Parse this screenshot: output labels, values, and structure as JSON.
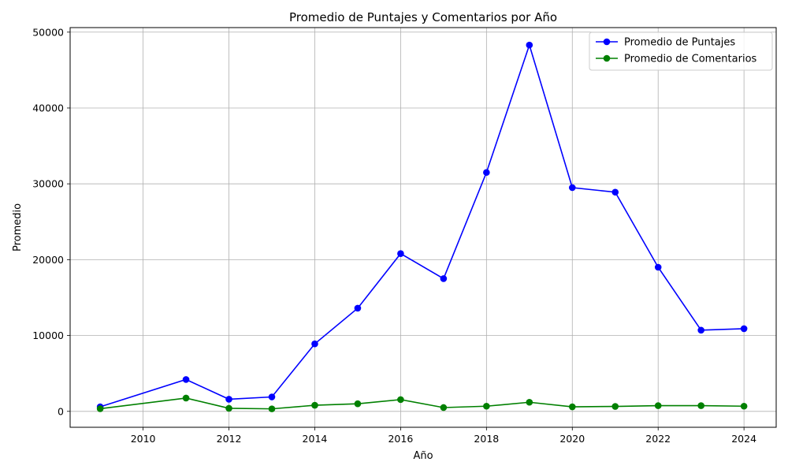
{
  "chart_data": {
    "type": "line",
    "title": "Promedio de Puntajes y Comentarios por Año",
    "xlabel": "Año",
    "ylabel": "Promedio",
    "xlim": [
      2008.3,
      2024.75
    ],
    "ylim": [
      -2100,
      50600
    ],
    "xticks": [
      2010,
      2012,
      2014,
      2016,
      2018,
      2020,
      2022,
      2024
    ],
    "yticks": [
      0,
      10000,
      20000,
      30000,
      40000,
      50000
    ],
    "grid": true,
    "legend_position": "top-right",
    "x": [
      2009,
      2011,
      2012,
      2013,
      2014,
      2015,
      2016,
      2017,
      2018,
      2019,
      2020,
      2021,
      2022,
      2023,
      2024
    ],
    "series": [
      {
        "name": "Promedio de Puntajes",
        "color": "#0000ff",
        "values": [
          600,
          4200,
          1600,
          1900,
          8900,
          13600,
          20800,
          17500,
          31500,
          48300,
          29500,
          28900,
          19000,
          10700,
          10900
        ]
      },
      {
        "name": "Promedio de Comentarios",
        "color": "#008000",
        "values": [
          350,
          1750,
          400,
          330,
          800,
          1000,
          1550,
          500,
          680,
          1200,
          600,
          650,
          750,
          750,
          680
        ]
      }
    ]
  }
}
